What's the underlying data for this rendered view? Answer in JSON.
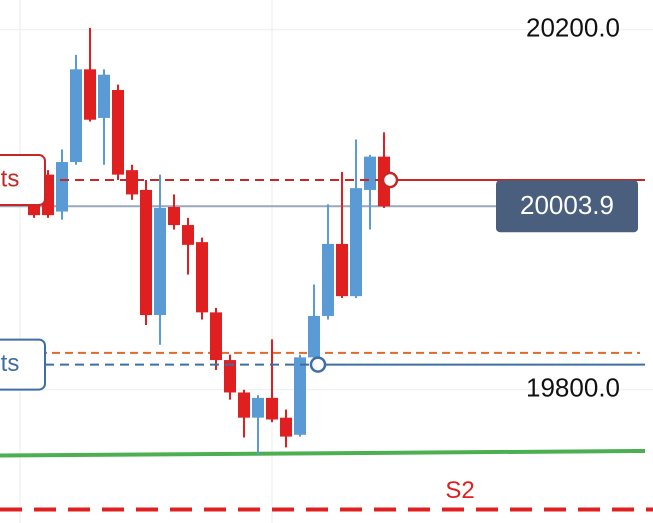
{
  "chart_data": {
    "type": "candlestick",
    "ylim": [
      19652,
      20233
    ],
    "yticks": [
      {
        "value": 20200,
        "label": "20200.0"
      },
      {
        "value": 19800,
        "label": "19800.0"
      }
    ],
    "grid": true,
    "up_color": "#5b9bd5",
    "down_color": "#e02020",
    "open": [
      20033,
      20039,
      19998,
      20053,
      20156,
      20102,
      20133,
      20044,
      20022,
      19883,
      20003,
      19983,
      19964,
      19886,
      19833,
      19797,
      19769,
      19791,
      19769,
      19750,
      19836,
      19882,
      19962,
      19904,
      20022,
      20059
    ],
    "high": [
      20038,
      20044,
      20067,
      20172,
      20202,
      20156,
      20139,
      20050,
      20033,
      20039,
      20017,
      19991,
      19969,
      19891,
      19839,
      19800,
      19794,
      19856,
      19778,
      19839,
      19917,
      20006,
      20042,
      20078,
      20061,
      20086
    ],
    "low": [
      19991,
      19991,
      19989,
      20050,
      20098,
      20050,
      20033,
      20011,
      19872,
      19850,
      19978,
      19928,
      19878,
      19822,
      19789,
      19747,
      19728,
      19764,
      19736,
      19748,
      19833,
      19878,
      19902,
      19902,
      19978,
      20002
    ],
    "close": [
      19994,
      19994,
      20053,
      20156,
      20100,
      20150,
      20039,
      20017,
      19883,
      20002,
      19983,
      19961,
      19886,
      19833,
      19797,
      19769,
      19791,
      19767,
      19748,
      19836,
      19882,
      19962,
      19904,
      20024,
      20059,
      20003.9
    ],
    "orders": [
      {
        "label": "ts",
        "price": 20033,
        "color": "#c62828"
      },
      {
        "label": "ts",
        "price": 19828,
        "color": "#3d6ea5"
      }
    ],
    "alert_price": 19841,
    "alert_color": "#e06a2c",
    "trendline": [
      19727,
      19732
    ],
    "trendline_color": "#4caf50",
    "support": {
      "label": "S2",
      "price": 19667,
      "color": "#e02020"
    },
    "last_price_color": "#4a5f7e"
  }
}
